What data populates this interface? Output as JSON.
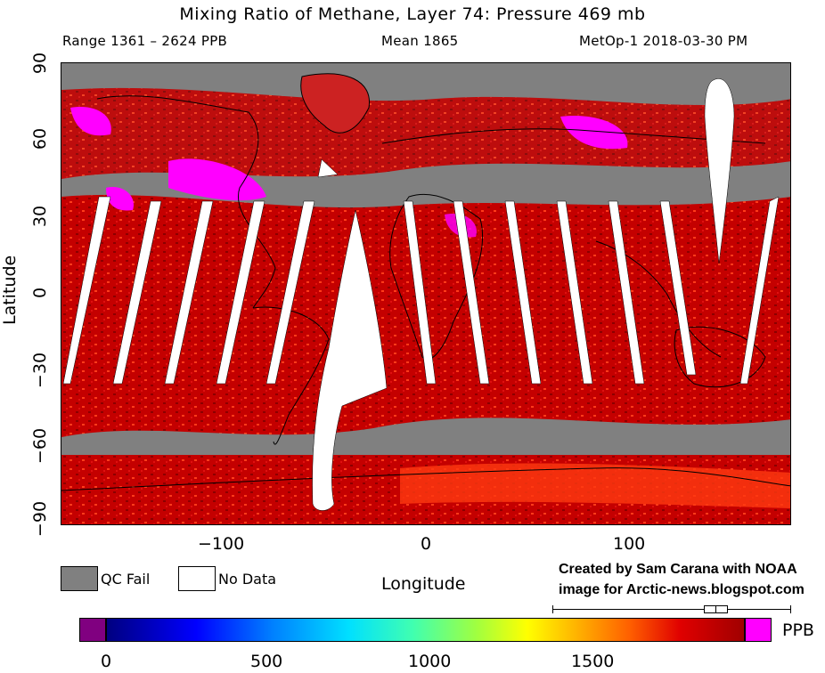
{
  "header": {
    "title": "Mixing Ratio of Methane, Layer 74: Pressure 469 mb",
    "range": "Range 1361 – 2624 PPB",
    "mean": "Mean 1865",
    "satellite_date": "MetOp-1 2018-03-30 PM"
  },
  "axes": {
    "ylabel": "Latitude",
    "xlabel": "Longitude",
    "yticks": [
      "90",
      "60",
      "30",
      "0",
      "−30",
      "−60",
      "−90"
    ],
    "xticks": [
      "−100",
      "0",
      "100"
    ]
  },
  "legend": {
    "qc_fail": "QC Fail",
    "no_data": "No Data",
    "qc_color": "#808080",
    "no_data_color": "#ffffff"
  },
  "credit": {
    "line1": "Created by Sam Carana with NOAA",
    "line2": "image for Arctic-news.blogspot.com"
  },
  "colorbar": {
    "unit": "PPB",
    "ticks": [
      "0",
      "500",
      "1000",
      "1500"
    ],
    "below_color": "#800080",
    "above_color": "#ff00ff"
  },
  "map": {
    "ocean_color": "#808080",
    "methane_color": "#cc0000",
    "high_color": "#ff00ff"
  }
}
